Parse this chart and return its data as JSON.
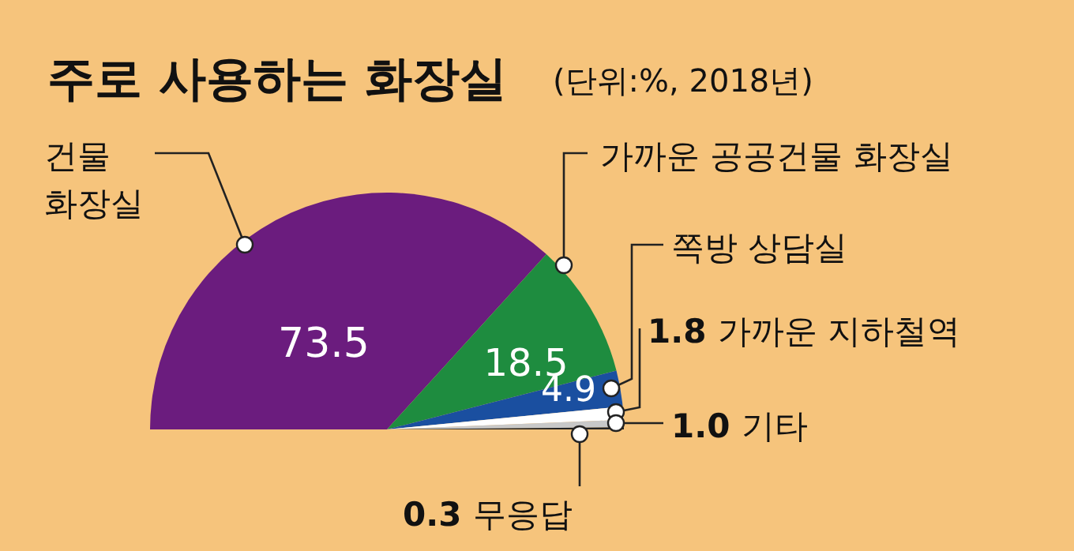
{
  "chart_data": {
    "type": "pie",
    "title": "주로 사용하는 화장실",
    "subtitle": "(단위:%, 2018년)",
    "categories": [
      "건물 화장실",
      "가까운 공공건물 화장실",
      "쪽방 상담실",
      "가까운 지하철역",
      "기타",
      "무응답"
    ],
    "values": [
      73.5,
      18.5,
      4.9,
      1.8,
      1.0,
      0.3
    ],
    "colors": [
      "#6b1c7e",
      "#1e8c3f",
      "#1a4fa0",
      "#ffffff",
      "#c8c8c8",
      "#222222"
    ],
    "value_labels": [
      "73.5",
      "18.5",
      "4.9",
      "1.8",
      "1.0",
      "0.3"
    ]
  }
}
